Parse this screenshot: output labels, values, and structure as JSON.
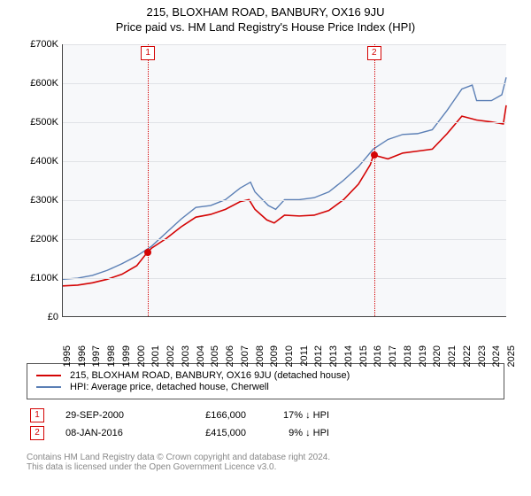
{
  "title": {
    "line1": "215, BLOXHAM ROAD, BANBURY, OX16 9JU",
    "line2": "Price paid vs. HM Land Registry's House Price Index (HPI)"
  },
  "chart": {
    "type": "line",
    "background_color": "#f7f8fa",
    "grid_color": "#e0e2e6",
    "axis_color": "#444444",
    "label_fontsize": 11,
    "x": {
      "min": 1995,
      "max": 2025,
      "ticks": [
        1995,
        1996,
        1997,
        1998,
        1999,
        2000,
        2001,
        2002,
        2003,
        2004,
        2005,
        2006,
        2007,
        2008,
        2009,
        2010,
        2011,
        2012,
        2013,
        2014,
        2015,
        2016,
        2017,
        2018,
        2019,
        2020,
        2021,
        2022,
        2023,
        2024,
        2025
      ]
    },
    "y": {
      "min": 0,
      "max": 700000,
      "step": 100000,
      "prefix": "£",
      "suffix": "K",
      "ticks": [
        0,
        100000,
        200000,
        300000,
        400000,
        500000,
        600000,
        700000
      ]
    },
    "series": [
      {
        "name": "price_paid",
        "label": "215, BLOXHAM ROAD, BANBURY, OX16 9JU (detached house)",
        "color": "#d40404",
        "width": 1.6,
        "points": [
          [
            1995,
            78000
          ],
          [
            1996,
            80000
          ],
          [
            1997,
            86000
          ],
          [
            1998,
            95000
          ],
          [
            1999,
            108000
          ],
          [
            2000,
            130000
          ],
          [
            2000.75,
            166000
          ],
          [
            2001,
            175000
          ],
          [
            2002,
            200000
          ],
          [
            2003,
            230000
          ],
          [
            2004,
            255000
          ],
          [
            2005,
            262000
          ],
          [
            2006,
            275000
          ],
          [
            2007,
            295000
          ],
          [
            2007.6,
            300000
          ],
          [
            2008,
            275000
          ],
          [
            2008.8,
            248000
          ],
          [
            2009.3,
            240000
          ],
          [
            2010,
            260000
          ],
          [
            2011,
            258000
          ],
          [
            2012,
            260000
          ],
          [
            2013,
            272000
          ],
          [
            2014,
            300000
          ],
          [
            2015,
            340000
          ],
          [
            2015.8,
            390000
          ],
          [
            2016.02,
            415000
          ],
          [
            2017,
            405000
          ],
          [
            2018,
            420000
          ],
          [
            2019,
            425000
          ],
          [
            2020,
            430000
          ],
          [
            2021,
            470000
          ],
          [
            2022,
            515000
          ],
          [
            2023,
            505000
          ],
          [
            2024,
            500000
          ],
          [
            2024.8,
            495000
          ],
          [
            2025,
            543000
          ]
        ]
      },
      {
        "name": "hpi",
        "label": "HPI: Average price, detached house, Cherwell",
        "color": "#5b7fb5",
        "width": 1.4,
        "points": [
          [
            1995,
            95000
          ],
          [
            1996,
            98000
          ],
          [
            1997,
            105000
          ],
          [
            1998,
            118000
          ],
          [
            1999,
            135000
          ],
          [
            2000,
            155000
          ],
          [
            2001,
            180000
          ],
          [
            2002,
            215000
          ],
          [
            2003,
            250000
          ],
          [
            2004,
            280000
          ],
          [
            2005,
            285000
          ],
          [
            2006,
            300000
          ],
          [
            2007,
            330000
          ],
          [
            2007.7,
            345000
          ],
          [
            2008,
            320000
          ],
          [
            2008.9,
            285000
          ],
          [
            2009.4,
            275000
          ],
          [
            2010,
            300000
          ],
          [
            2011,
            300000
          ],
          [
            2012,
            305000
          ],
          [
            2013,
            320000
          ],
          [
            2014,
            350000
          ],
          [
            2015,
            385000
          ],
          [
            2016,
            430000
          ],
          [
            2017,
            455000
          ],
          [
            2018,
            468000
          ],
          [
            2019,
            470000
          ],
          [
            2020,
            480000
          ],
          [
            2021,
            530000
          ],
          [
            2022,
            585000
          ],
          [
            2022.7,
            595000
          ],
          [
            2023,
            555000
          ],
          [
            2024,
            555000
          ],
          [
            2024.7,
            570000
          ],
          [
            2025,
            615000
          ]
        ]
      }
    ],
    "markers": [
      {
        "n": 1,
        "x": 2000.75,
        "y": 166000,
        "color": "#d40404"
      },
      {
        "n": 2,
        "x": 2016.02,
        "y": 415000,
        "color": "#d40404"
      }
    ]
  },
  "legend": {
    "border_color": "#555555",
    "items": [
      {
        "series": "price_paid"
      },
      {
        "series": "hpi"
      }
    ]
  },
  "annotations": [
    {
      "n": 1,
      "color": "#d40404",
      "date": "29-SEP-2000",
      "price": "£166,000",
      "delta": "17% ↓ HPI"
    },
    {
      "n": 2,
      "color": "#d40404",
      "date": "08-JAN-2016",
      "price": "£415,000",
      "delta": "9% ↓ HPI"
    }
  ],
  "footer": {
    "line1": "Contains HM Land Registry data © Crown copyright and database right 2024.",
    "line2": "This data is licensed under the Open Government Licence v3.0."
  }
}
